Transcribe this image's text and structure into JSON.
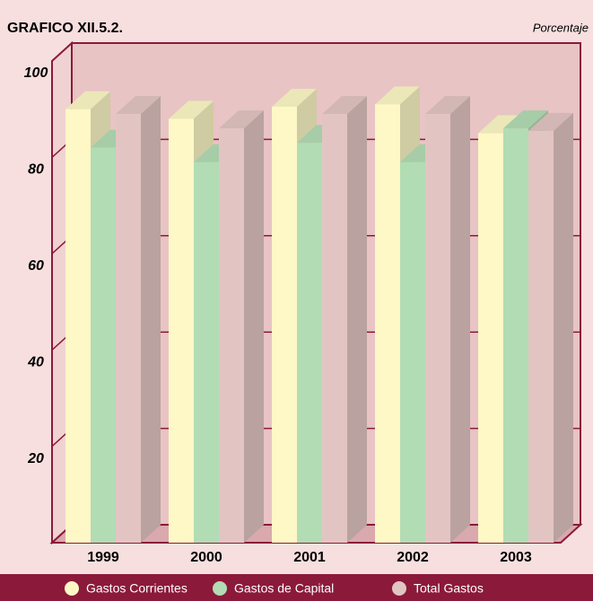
{
  "chart_data": {
    "type": "bar3d",
    "title": "GRAFICO XII.5.2.",
    "unit_label": "Porcentaje",
    "categories": [
      "1999",
      "2000",
      "2001",
      "2002",
      "2003"
    ],
    "series": [
      {
        "name": "Gastos Corrientes",
        "color": "#fdf8c6",
        "values": [
          90,
          88,
          90.5,
          91,
          85
        ]
      },
      {
        "name": "Gastos de Capital",
        "color": "#b2dcb4",
        "values": [
          82,
          79,
          83,
          79,
          86
        ]
      },
      {
        "name": "Total Gastos",
        "color": "#e2c5c2",
        "values": [
          89,
          86,
          89,
          89,
          85.5
        ]
      }
    ],
    "ylim": [
      0,
      100
    ],
    "yticks": [
      20,
      40,
      60,
      80,
      100
    ],
    "grid": true
  }
}
